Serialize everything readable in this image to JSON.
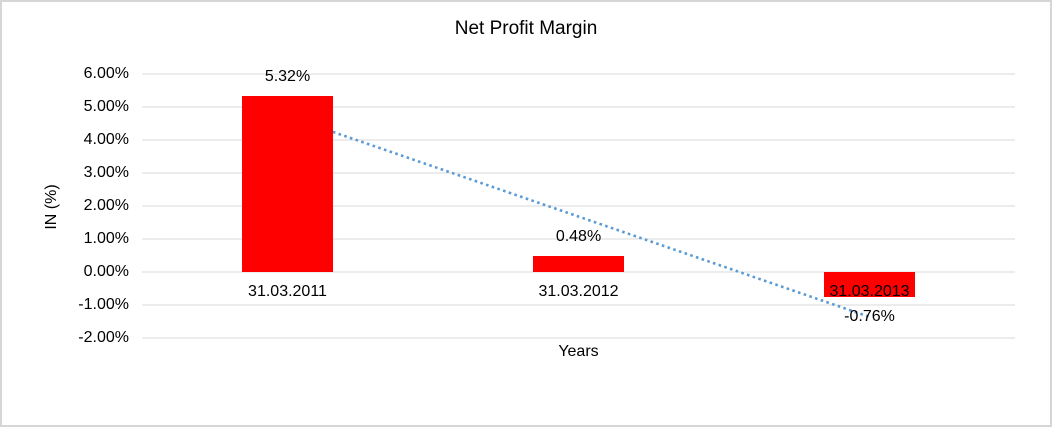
{
  "window": {
    "background": "#ffffff",
    "border_color": "#d6d6d6"
  },
  "chart_data": {
    "type": "bar",
    "title": "Net Profit Margin",
    "xlabel": "Years",
    "ylabel": "IN (%)",
    "categories": [
      "31.03.2011",
      "31.03.2012",
      "31.03.2013"
    ],
    "values": [
      5.32,
      0.48,
      -0.76
    ],
    "value_labels": [
      "5.32%",
      "0.48%",
      "-0.76%"
    ],
    "ylim": [
      -2,
      6
    ],
    "ytick_step": 1,
    "ytick_labels": [
      "6.00%",
      "5.00%",
      "4.00%",
      "3.00%",
      "2.00%",
      "1.00%",
      "0.00%",
      "-1.00%",
      "-2.00%"
    ],
    "grid": true,
    "legend": false,
    "colors": {
      "bar": "#ff0000",
      "gridline": "#d9d9d9",
      "text": "#000000",
      "trendline": "#5b9bd5"
    },
    "trendline": {
      "type": "linear",
      "style": "dotted",
      "start_value": 4.72,
      "end_value": -1.36
    }
  }
}
